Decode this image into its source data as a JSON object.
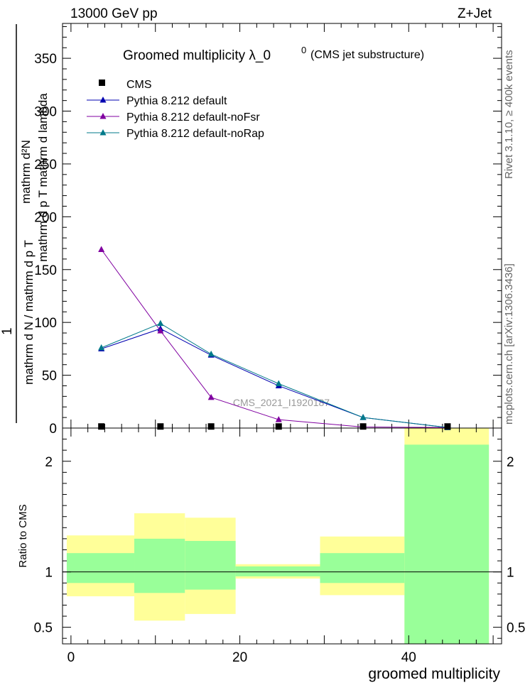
{
  "header": {
    "energy_label": "13000 GeV pp",
    "process_label": "Z+Jet"
  },
  "side_labels": {
    "rivet": "Rivet 3.1.10, ≥ 400k events",
    "mcplots": "mcplots.cern.ch [arXiv:1306.3436]"
  },
  "chart_data": [
    {
      "type": "line",
      "title": "Groomed multiplicity  λ_0",
      "title_sup": "0",
      "title_suffix": "(CMS jet substructure)",
      "ylabel_factor": "1",
      "ylabel_num": "mathrm d²N",
      "ylabel_den1": "mathrm d p",
      "ylabel_den1_sub": "T",
      "ylabel_den2": "mathrm d lambda",
      "ylabel_bottom": "mathrm d N / mathrm d p",
      "ylabel_bottom_sub": "T",
      "ylabel_bottom2": "mathrm d p",
      "ylabel_bottom2_sub": "T",
      "xlim": [
        -1,
        51
      ],
      "ylim": [
        0,
        383
      ],
      "yticks": [
        0,
        50,
        100,
        150,
        200,
        250,
        300,
        350
      ],
      "watermark": "CMS_2021_I1920187",
      "bin_edges": [
        0,
        8,
        14,
        20,
        30,
        40,
        50
      ],
      "data": {
        "name": "CMS",
        "x": [
          3.6,
          10.6,
          16.6,
          24.6,
          34.6,
          44.6
        ],
        "y": [
          0.5,
          0.5,
          0.5,
          0.5,
          0.5,
          0.5
        ]
      },
      "series": [
        {
          "name": "Pythia 8.212 default",
          "color": "#0000b0",
          "x": [
            3.6,
            10.6,
            16.6,
            24.6,
            34.6,
            44.6
          ],
          "y": [
            75,
            94,
            69,
            40,
            10,
            0.5
          ]
        },
        {
          "name": "Pythia 8.212 default-noFsr",
          "color": "#8000a0",
          "x": [
            3.6,
            10.6,
            16.6,
            24.6,
            34.6,
            44.6
          ],
          "y": [
            169,
            92,
            29,
            8,
            1,
            0.5
          ]
        },
        {
          "name": "Pythia 8.212 default-noRap",
          "color": "#007a8a",
          "x": [
            3.6,
            10.6,
            16.6,
            24.6,
            34.6,
            44.6
          ],
          "y": [
            76,
            99,
            70,
            42,
            10,
            0.5
          ]
        }
      ]
    },
    {
      "type": "ratio",
      "ylabel": "Ratio to CMS",
      "xlabel": "groomed multiplicity",
      "xlim": [
        -1,
        51
      ],
      "ylim": [
        0.35,
        2.3
      ],
      "yticks": [
        0.5,
        1,
        2
      ],
      "ytick_labels": [
        "0.5",
        "1",
        "2"
      ],
      "xticks": [
        0,
        20,
        40
      ],
      "xtick_labels": [
        "0",
        "20",
        "40"
      ],
      "bands": [
        {
          "x0": -0.5,
          "x1": 7.5,
          "yellow": [
            0.78,
            1.33
          ],
          "green": [
            0.9,
            1.17
          ]
        },
        {
          "x0": 7.5,
          "x1": 13.5,
          "yellow": [
            0.56,
            1.53
          ],
          "green": [
            0.81,
            1.3
          ]
        },
        {
          "x0": 13.5,
          "x1": 19.5,
          "yellow": [
            0.62,
            1.49
          ],
          "green": [
            0.84,
            1.28
          ]
        },
        {
          "x0": 19.5,
          "x1": 29.5,
          "yellow": [
            0.94,
            1.07
          ],
          "green": [
            0.96,
            1.05
          ]
        },
        {
          "x0": 29.5,
          "x1": 39.5,
          "yellow": [
            0.79,
            1.32
          ],
          "green": [
            0.9,
            1.17
          ]
        },
        {
          "x0": 39.5,
          "x1": 49.5,
          "yellow": [
            0.35,
            2.3
          ],
          "green": [
            0.35,
            2.15
          ]
        }
      ],
      "band_colors": {
        "yellow": "#ffff99",
        "green": "#99ff99"
      },
      "reference_value": 1
    }
  ]
}
